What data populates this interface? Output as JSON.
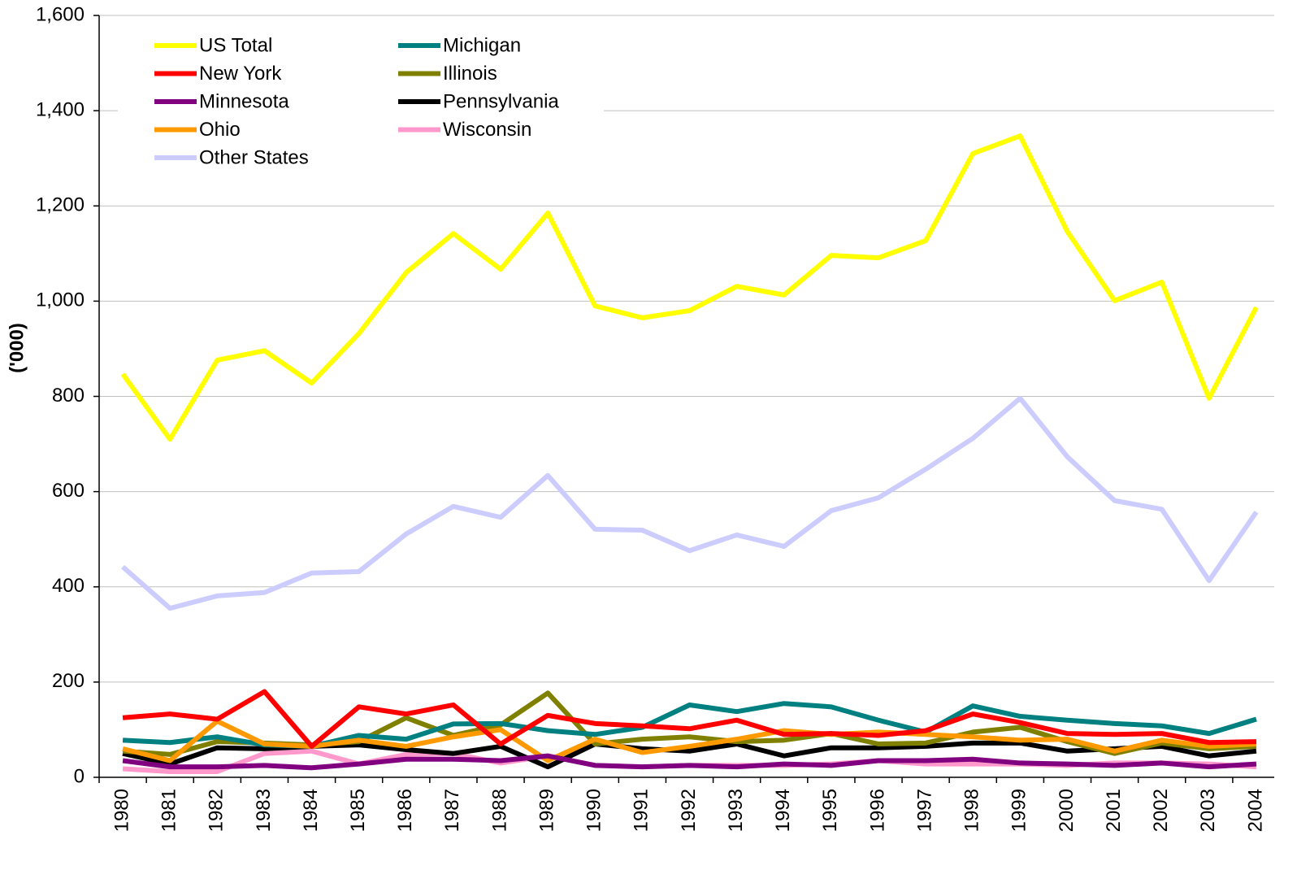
{
  "chart_data": {
    "type": "line",
    "ylabel": "('000)",
    "categories": [
      "1980",
      "1981",
      "1982",
      "1983",
      "1984",
      "1985",
      "1986",
      "1987",
      "1988",
      "1989",
      "1990",
      "1991",
      "1992",
      "1993",
      "1994",
      "1995",
      "1996",
      "1997",
      "1998",
      "1999",
      "2000",
      "2001",
      "2002",
      "2003",
      "2004"
    ],
    "ylim": [
      0,
      1600
    ],
    "yticks": [
      0,
      200,
      400,
      600,
      800,
      {
        "value": 1000,
        "label": "1,000"
      },
      {
        "value": 1200,
        "label": "1,200"
      },
      {
        "value": 1400,
        "label": "1,400"
      },
      {
        "value": 1600,
        "label": "1,600"
      }
    ],
    "grid": true,
    "legend": "upper left",
    "series": [
      {
        "name": "US Total",
        "color": "#ffff00",
        "values": [
          847,
          710,
          876,
          896,
          828,
          932,
          1060,
          1142,
          1067,
          1185,
          990,
          965,
          980,
          1031,
          1013,
          1096,
          1091,
          1127,
          1310,
          1347,
          1146,
          1001,
          1040,
          796,
          987
        ]
      },
      {
        "name": "New York",
        "color": "#ff0000",
        "values": [
          125,
          133,
          122,
          180,
          65,
          148,
          133,
          152,
          70,
          130,
          113,
          108,
          102,
          120,
          90,
          92,
          88,
          98,
          133,
          115,
          92,
          90,
          92,
          73,
          75
        ]
      },
      {
        "name": "Minnesota",
        "color": "#800080",
        "values": [
          35,
          22,
          22,
          25,
          20,
          28,
          38,
          38,
          35,
          45,
          25,
          22,
          25,
          22,
          28,
          25,
          35,
          35,
          38,
          30,
          28,
          25,
          30,
          22,
          28
        ]
      },
      {
        "name": "Ohio",
        "color": "#ff9900",
        "values": [
          60,
          35,
          118,
          70,
          65,
          78,
          65,
          85,
          100,
          35,
          80,
          52,
          65,
          80,
          98,
          90,
          95,
          90,
          85,
          78,
          80,
          55,
          78,
          65,
          70
        ]
      },
      {
        "name": "Other States",
        "color": "#ccccff",
        "values": [
          442,
          355,
          381,
          388,
          429,
          432,
          511,
          569,
          546,
          634,
          521,
          519,
          476,
          509,
          485,
          560,
          587,
          647,
          712,
          796,
          673,
          581,
          563,
          413,
          557
        ]
      },
      {
        "name": "Michigan",
        "color": "#008080",
        "values": [
          78,
          73,
          85,
          68,
          65,
          88,
          80,
          112,
          113,
          98,
          90,
          105,
          152,
          138,
          155,
          148,
          120,
          95,
          150,
          128,
          120,
          113,
          108,
          92,
          122
        ]
      },
      {
        "name": "Illinois",
        "color": "#808000",
        "values": [
          55,
          48,
          75,
          72,
          68,
          75,
          125,
          88,
          110,
          177,
          70,
          80,
          85,
          75,
          78,
          92,
          70,
          72,
          95,
          105,
          75,
          50,
          72,
          60,
          65
        ]
      },
      {
        "name": "Pennsylvania",
        "color": "#000000",
        "values": [
          50,
          28,
          62,
          60,
          65,
          68,
          58,
          50,
          65,
          22,
          70,
          60,
          55,
          70,
          45,
          62,
          62,
          65,
          72,
          72,
          55,
          60,
          65,
          45,
          55
        ]
      },
      {
        "name": "Wisconsin",
        "color": "#ff99cc",
        "values": [
          18,
          12,
          12,
          50,
          55,
          28,
          48,
          50,
          30,
          45,
          25,
          22,
          25,
          25,
          25,
          28,
          35,
          28,
          28,
          28,
          25,
          30,
          30,
          28,
          22
        ]
      }
    ]
  }
}
